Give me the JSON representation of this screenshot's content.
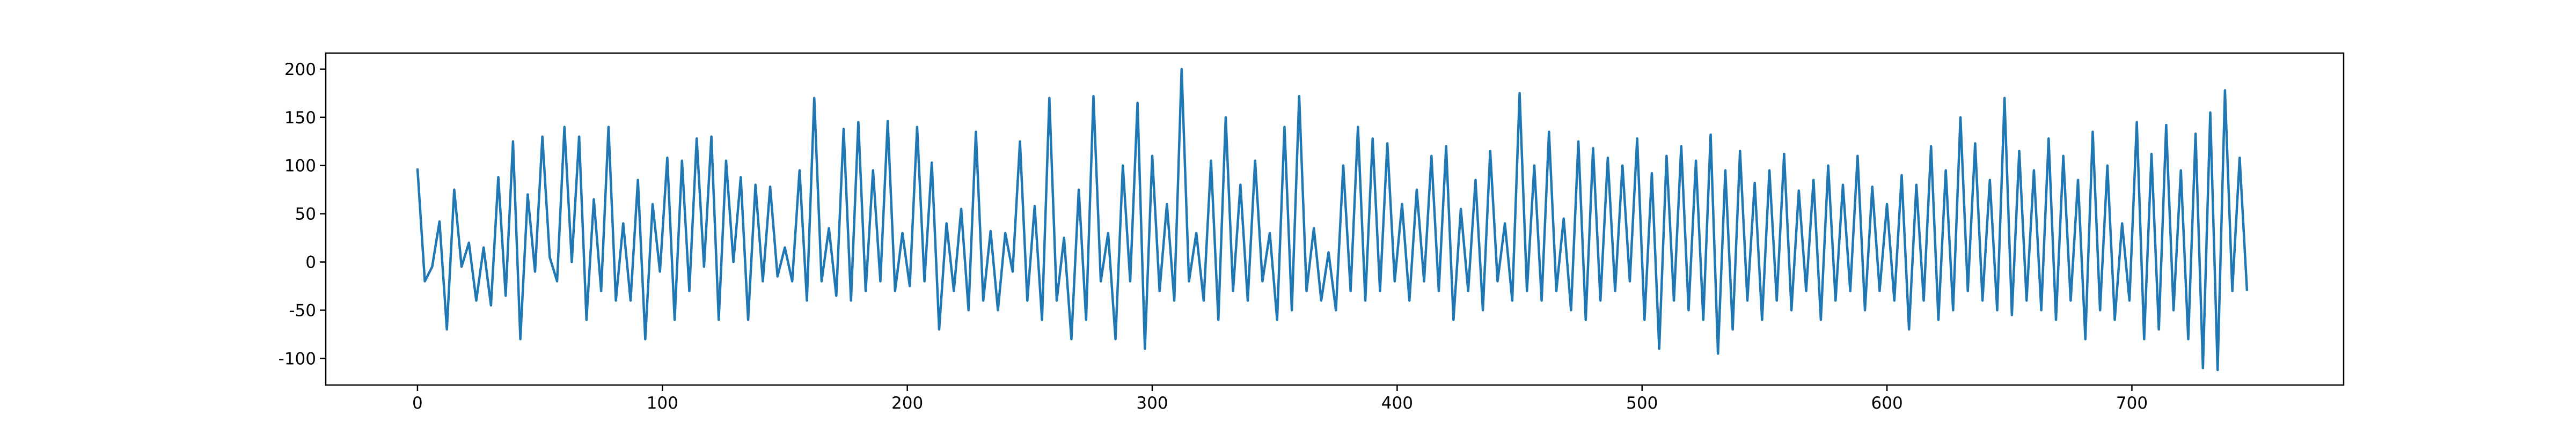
{
  "chart_data": {
    "type": "line",
    "x": [
      0,
      3,
      6,
      9,
      12,
      15,
      18,
      21,
      24,
      27,
      30,
      33,
      36,
      39,
      42,
      45,
      48,
      51,
      54,
      57,
      60,
      63,
      66,
      69,
      72,
      75,
      78,
      81,
      84,
      87,
      90,
      93,
      96,
      99,
      102,
      105,
      108,
      111,
      114,
      117,
      120,
      123,
      126,
      129,
      132,
      135,
      138,
      141,
      144,
      147,
      150,
      153,
      156,
      159,
      162,
      165,
      168,
      171,
      174,
      177,
      180,
      183,
      186,
      189,
      192,
      195,
      198,
      201,
      204,
      207,
      210,
      213,
      216,
      219,
      222,
      225,
      228,
      231,
      234,
      237,
      240,
      243,
      246,
      249,
      252,
      255,
      258,
      261,
      264,
      267,
      270,
      273,
      276,
      279,
      282,
      285,
      288,
      291,
      294,
      297,
      300,
      303,
      306,
      309,
      312,
      315,
      318,
      321,
      324,
      327,
      330,
      333,
      336,
      339,
      342,
      345,
      348,
      351,
      354,
      357,
      360,
      363,
      366,
      369,
      372,
      375,
      378,
      381,
      384,
      387,
      390,
      393,
      396,
      399,
      402,
      405,
      408,
      411,
      414,
      417,
      420,
      423,
      426,
      429,
      432,
      435,
      438,
      441,
      444,
      447,
      450,
      453,
      456,
      459,
      462,
      465,
      468,
      471,
      474,
      477,
      480,
      483,
      486,
      489,
      492,
      495,
      498,
      501,
      504,
      507,
      510,
      513,
      516,
      519,
      522,
      525,
      528,
      531,
      534,
      537,
      540,
      543,
      546,
      549,
      552,
      555,
      558,
      561,
      564,
      567,
      570,
      573,
      576,
      579,
      582,
      585,
      588,
      591,
      594,
      597,
      600,
      603,
      606,
      609,
      612,
      615,
      618,
      621,
      624,
      627,
      630,
      633,
      636,
      639,
      642,
      645,
      648,
      651,
      654,
      657,
      660,
      663,
      666,
      669,
      672,
      675,
      678,
      681,
      684,
      687,
      690,
      693,
      696,
      699,
      702,
      705,
      708,
      711,
      714,
      717,
      720,
      723,
      726,
      729,
      732,
      735,
      738,
      741,
      744,
      747
    ],
    "series": [
      {
        "color": "#1f77b4",
        "values": [
          97,
          -20,
          -5,
          42,
          -70,
          75,
          -5,
          20,
          -40,
          15,
          -45,
          88,
          -35,
          125,
          -80,
          70,
          -10,
          130,
          5,
          -20,
          140,
          0,
          130,
          -60,
          65,
          -30,
          140,
          -40,
          40,
          -40,
          85,
          -80,
          60,
          -10,
          108,
          -60,
          105,
          -30,
          128,
          -5,
          130,
          -60,
          105,
          0,
          88,
          -60,
          80,
          -20,
          78,
          -15,
          15,
          -20,
          95,
          -40,
          170,
          -20,
          35,
          -35,
          138,
          -40,
          145,
          -30,
          95,
          -20,
          146,
          -30,
          30,
          -25,
          140,
          -20,
          103,
          -70,
          40,
          -30,
          55,
          -50,
          135,
          -40,
          32,
          -50,
          30,
          -10,
          125,
          -40,
          58,
          -60,
          170,
          -40,
          25,
          -80,
          75,
          -60,
          172,
          -20,
          30,
          -80,
          100,
          -20,
          165,
          -90,
          110,
          -30,
          60,
          -40,
          200,
          -20,
          30,
          -40,
          105,
          -60,
          150,
          -30,
          80,
          -40,
          105,
          -20,
          30,
          -60,
          140,
          -50,
          172,
          -30,
          35,
          -40,
          10,
          -50,
          100,
          -30,
          140,
          -40,
          128,
          -30,
          123,
          -20,
          60,
          -40,
          75,
          -20,
          110,
          -30,
          120,
          -60,
          55,
          -30,
          85,
          -50,
          115,
          -20,
          40,
          -40,
          175,
          -30,
          100,
          -40,
          135,
          -30,
          45,
          -50,
          125,
          -60,
          118,
          -40,
          108,
          -30,
          100,
          -20,
          128,
          -60,
          92,
          -90,
          110,
          -40,
          120,
          -50,
          105,
          -60,
          132,
          -95,
          95,
          -70,
          115,
          -40,
          82,
          -60,
          95,
          -40,
          112,
          -50,
          74,
          -30,
          85,
          -60,
          100,
          -40,
          80,
          -30,
          110,
          -50,
          78,
          -30,
          60,
          -40,
          90,
          -70,
          80,
          -40,
          120,
          -60,
          95,
          -50,
          150,
          -30,
          123,
          -40,
          85,
          -50,
          170,
          -55,
          115,
          -40,
          95,
          -50,
          128,
          -60,
          110,
          -40,
          85,
          -80,
          135,
          -50,
          100,
          -60,
          40,
          -40,
          145,
          -80,
          112,
          -70,
          142,
          -50,
          95,
          -80,
          133,
          -110,
          155,
          -112,
          178,
          -30,
          108,
          -30
        ]
      }
    ],
    "xlim": [
      -37.45,
      786.45
    ],
    "xticks": [
      0,
      100,
      200,
      300,
      400,
      500,
      600,
      700
    ],
    "ylim": [
      -127.6,
      216.6
    ],
    "yticks": [
      -100,
      -50,
      0,
      50,
      100,
      150,
      200
    ],
    "grid": false
  }
}
